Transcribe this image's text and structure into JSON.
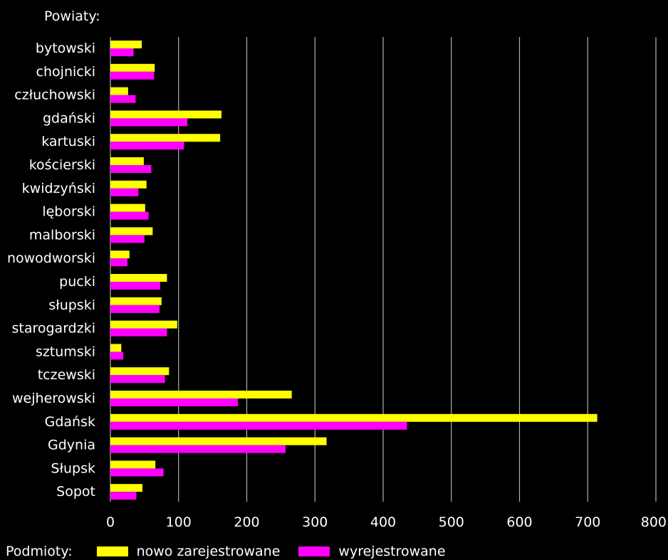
{
  "chart_data": {
    "type": "bar",
    "orientation": "horizontal",
    "ylabel": "Powiaty:",
    "legend_title": "Podmioty:",
    "legend_position": "bottom-left",
    "grid": true,
    "xlim": [
      0,
      800
    ],
    "x_ticks": [
      "0",
      "100",
      "200",
      "300",
      "400",
      "500",
      "600",
      "700",
      "800"
    ],
    "categories": [
      "bytowski",
      "chojnicki",
      "człuchowski",
      "gdański",
      "kartuski",
      "kościerski",
      "kwidzyński",
      "lęborski",
      "malborski",
      "nowodworski",
      "pucki",
      "słupski",
      "starogardzki",
      "sztumski",
      "tczewski",
      "wejherowski",
      "Gdańsk",
      "Gdynia",
      "Słupsk",
      "Sopot"
    ],
    "series": [
      {
        "name": "nowo zarejestrowane",
        "color": "#ffff00",
        "values": [
          46,
          65,
          26,
          163,
          161,
          49,
          53,
          51,
          62,
          28,
          83,
          75,
          98,
          16,
          86,
          266,
          714,
          317,
          66,
          47
        ]
      },
      {
        "name": "wyrejestrowane",
        "color": "#ff00ff",
        "values": [
          34,
          64,
          37,
          113,
          108,
          60,
          41,
          56,
          50,
          25,
          73,
          72,
          83,
          19,
          80,
          187,
          435,
          257,
          78,
          38
        ]
      }
    ]
  }
}
